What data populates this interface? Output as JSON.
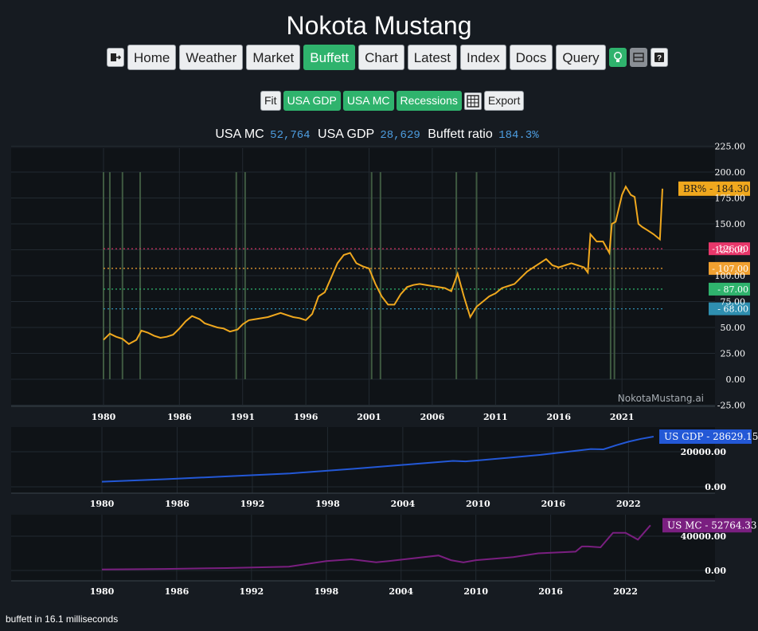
{
  "app_title": "Nokota Mustang",
  "nav": {
    "items": [
      "Home",
      "Weather",
      "Market",
      "Buffett",
      "Chart",
      "Latest",
      "Index",
      "Docs",
      "Query"
    ],
    "active": "Buffett"
  },
  "toolbar": {
    "fit": "Fit",
    "usa_gdp": "USA GDP",
    "usa_mc": "USA MC",
    "recessions": "Recessions",
    "export": "Export"
  },
  "summary": {
    "mc_label": "USA MC",
    "mc_value": "52,764",
    "gdp_label": "USA GDP",
    "gdp_value": "28,629",
    "ratio_label": "Buffett ratio",
    "ratio_value": "184.3%"
  },
  "footer": "buffett in 16.1 milliseconds",
  "colors": {
    "ratio": "#f0a81e",
    "gdp": "#2358d6",
    "mc": "#7a1f80",
    "l126": "#e9376b",
    "l107": "#f0a030",
    "l87": "#2fb36d",
    "l68": "#2f8fb0"
  },
  "chart_data": [
    {
      "type": "line",
      "watermark": "NokotaMustang.ai",
      "y_ticks": [
        "225.00",
        "200.00",
        "175.00",
        "150.00",
        "125.00",
        "100.00",
        "75.00",
        "50.00",
        "25.00",
        "0.00",
        "-25.00"
      ],
      "x_ticks": [
        "1980",
        "1986",
        "1991",
        "1996",
        "2001",
        "2006",
        "2011",
        "2016",
        "2021"
      ],
      "ylim": [
        -25,
        225
      ],
      "series": [
        {
          "name": "BR%",
          "last_value": "184.30",
          "x": [
            1980,
            1980.5,
            1981,
            1981.5,
            1982,
            1982.6,
            1983,
            1983.5,
            1984,
            1984.5,
            1985,
            1985.5,
            1986,
            1986.5,
            1987,
            1987.6,
            1988,
            1988.5,
            1989,
            1989.5,
            1990,
            1990.6,
            1991,
            1991.5,
            1992,
            1993,
            1994,
            1994.5,
            1995,
            1995.5,
            1996,
            1996.5,
            1997,
            1997.5,
            1998,
            1998.5,
            1999,
            1999.5,
            2000,
            2000.5,
            2001,
            2001.5,
            2002,
            2002.5,
            2003,
            2003.5,
            2004,
            2004.5,
            2005,
            2006,
            2007,
            2007.5,
            2008,
            2008.5,
            2009,
            2009.5,
            2010,
            2010.5,
            2011,
            2011.5,
            2012,
            2012.5,
            2013,
            2013.5,
            2014,
            2014.5,
            2015,
            2015.5,
            2016,
            2016.5,
            2017,
            2017.5,
            2018,
            2018.3,
            2018.5,
            2019,
            2019.5,
            2020,
            2020.2,
            2020.5,
            2021,
            2021.3,
            2021.7,
            2022,
            2022.3,
            2022.6,
            2023,
            2023.5,
            2024,
            2024.2
          ],
          "values": [
            38,
            44,
            41,
            39,
            34,
            38,
            47,
            45,
            42,
            40,
            41,
            43,
            49,
            56,
            61,
            58,
            54,
            52,
            50,
            49,
            46,
            48,
            53,
            57,
            58,
            60,
            64,
            62,
            60,
            59,
            57,
            63,
            80,
            84,
            98,
            112,
            120,
            122,
            112,
            109,
            107,
            92,
            80,
            72,
            72,
            82,
            89,
            91,
            92,
            90,
            88,
            85,
            102,
            80,
            60,
            70,
            75,
            80,
            83,
            88,
            90,
            92,
            98,
            104,
            108,
            112,
            116,
            110,
            108,
            110,
            112,
            110,
            108,
            103,
            140,
            133,
            133,
            122,
            150,
            152,
            178,
            186,
            178,
            176,
            150,
            147,
            144,
            140,
            135,
            184
          ]
        }
      ],
      "reference_lines": [
        126,
        107,
        87,
        68
      ],
      "recessions": [
        [
          1980.0,
          1980.5
        ],
        [
          1981.5,
          1982.9
        ],
        [
          1990.5,
          1991.2
        ],
        [
          2001.2,
          2001.9
        ],
        [
          2007.9,
          2009.5
        ],
        [
          2020.1,
          2020.4
        ]
      ]
    },
    {
      "type": "line",
      "x_ticks": [
        "1980",
        "1986",
        "1992",
        "1998",
        "2004",
        "2010",
        "2016",
        "2022"
      ],
      "y_ticks": [
        "20000.00",
        "0.00"
      ],
      "series": [
        {
          "name": "US GDP",
          "last_value": "28629.15",
          "x": [
            1980,
            1985,
            1990,
            1995,
            2000,
            2005,
            2008,
            2009,
            2010,
            2015,
            2019,
            2020,
            2021,
            2022,
            2023,
            2024
          ],
          "values": [
            2900,
            4300,
            5960,
            7640,
            10250,
            13040,
            14770,
            14480,
            15050,
            18240,
            21540,
            21350,
            23680,
            25740,
            27360,
            28629
          ]
        }
      ]
    },
    {
      "type": "line",
      "x_ticks": [
        "1980",
        "1986",
        "1992",
        "1998",
        "2004",
        "2010",
        "2016",
        "2022"
      ],
      "y_ticks": [
        "40000.00",
        "0.00"
      ],
      "series": [
        {
          "name": "US MC",
          "last_value": "52764.33",
          "x": [
            1980,
            1985,
            1990,
            1995,
            1998,
            2000,
            2002,
            2003,
            2007,
            2008,
            2009,
            2010,
            2013,
            2015,
            2018,
            2018.5,
            2019,
            2020,
            2021,
            2022,
            2023,
            2024
          ],
          "values": [
            1100,
            1800,
            2800,
            4500,
            11000,
            13000,
            9500,
            11000,
            17500,
            12000,
            9500,
            12000,
            15500,
            20000,
            22000,
            28000,
            28000,
            27000,
            44000,
            44000,
            36000,
            52764
          ]
        }
      ]
    }
  ]
}
